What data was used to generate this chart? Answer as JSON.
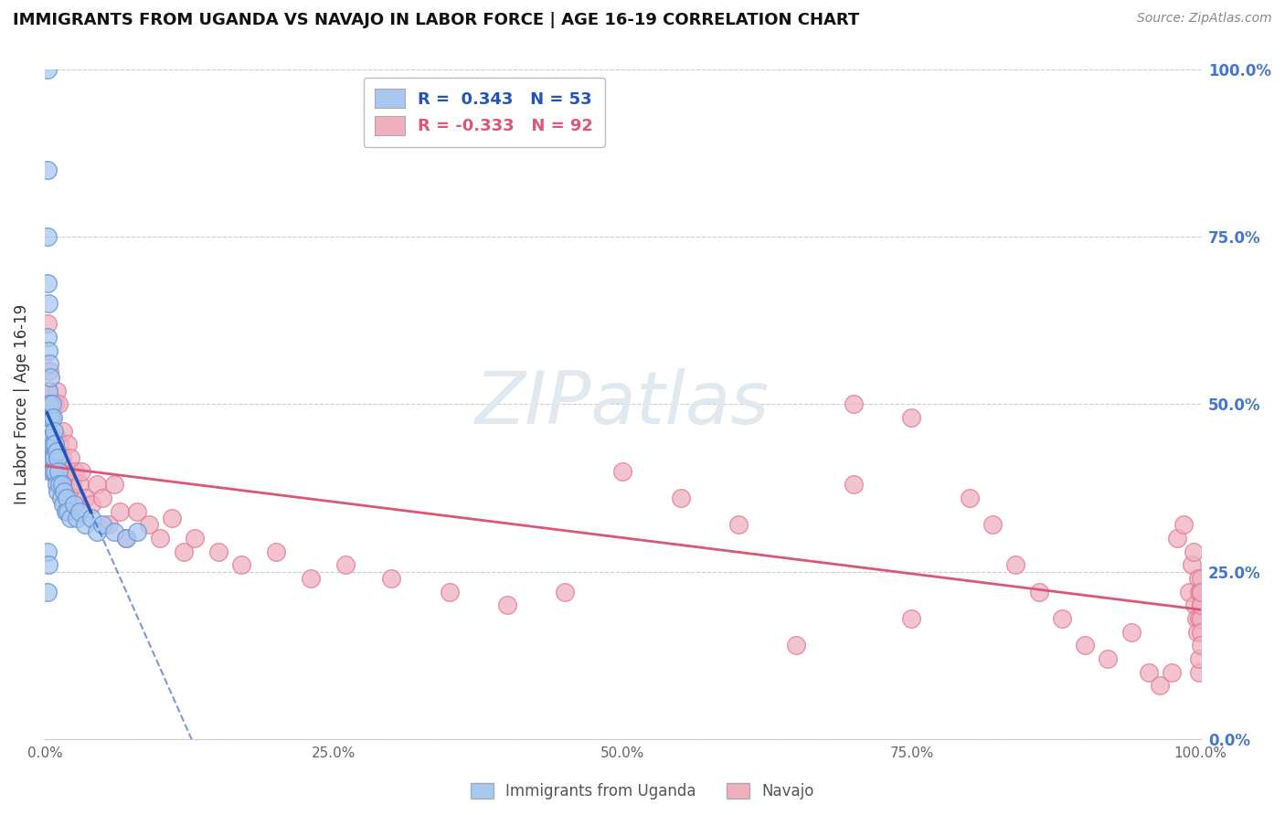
{
  "title": "IMMIGRANTS FROM UGANDA VS NAVAJO IN LABOR FORCE | AGE 16-19 CORRELATION CHART",
  "source": "Source: ZipAtlas.com",
  "ylabel": "In Labor Force | Age 16-19",
  "r_uganda": 0.343,
  "n_uganda": 53,
  "r_navajo": -0.333,
  "n_navajo": 92,
  "blue_scatter_face": "#a8c8f0",
  "blue_scatter_edge": "#6090d0",
  "pink_scatter_face": "#f0b0c0",
  "pink_scatter_edge": "#e07890",
  "blue_line_color": "#2255bb",
  "pink_line_color": "#dd5577",
  "ytick_color": "#4477cc",
  "xtick_color": "#666666",
  "grid_color": "#cccccc",
  "watermark_color": "#e0e8f0",
  "xlim": [
    0.0,
    1.0
  ],
  "ylim": [
    0.0,
    1.0
  ],
  "xticks": [
    0.0,
    0.25,
    0.5,
    0.75,
    1.0
  ],
  "yticks": [
    0.0,
    0.25,
    0.5,
    0.75,
    1.0
  ],
  "xticklabels": [
    "0.0%",
    "25.0%",
    "50.0%",
    "75.0%",
    "100.0%"
  ],
  "yticklabels": [
    "0.0%",
    "25.0%",
    "50.0%",
    "75.0%",
    "100.0%"
  ],
  "uganda_x": [
    0.002,
    0.002,
    0.002,
    0.002,
    0.002,
    0.003,
    0.003,
    0.003,
    0.003,
    0.004,
    0.004,
    0.004,
    0.005,
    0.005,
    0.005,
    0.005,
    0.006,
    0.006,
    0.006,
    0.007,
    0.007,
    0.007,
    0.008,
    0.008,
    0.009,
    0.009,
    0.01,
    0.01,
    0.011,
    0.011,
    0.012,
    0.013,
    0.014,
    0.015,
    0.016,
    0.017,
    0.018,
    0.019,
    0.02,
    0.022,
    0.025,
    0.028,
    0.03,
    0.035,
    0.04,
    0.045,
    0.05,
    0.06,
    0.07,
    0.08,
    0.002,
    0.003,
    0.002
  ],
  "uganda_y": [
    1.0,
    0.85,
    0.75,
    0.68,
    0.6,
    0.65,
    0.58,
    0.52,
    0.48,
    0.56,
    0.5,
    0.45,
    0.54,
    0.48,
    0.44,
    0.4,
    0.5,
    0.45,
    0.42,
    0.48,
    0.44,
    0.4,
    0.46,
    0.42,
    0.44,
    0.4,
    0.43,
    0.38,
    0.42,
    0.37,
    0.4,
    0.38,
    0.36,
    0.38,
    0.35,
    0.37,
    0.34,
    0.36,
    0.34,
    0.33,
    0.35,
    0.33,
    0.34,
    0.32,
    0.33,
    0.31,
    0.32,
    0.31,
    0.3,
    0.31,
    0.28,
    0.26,
    0.22
  ],
  "navajo_x": [
    0.002,
    0.003,
    0.004,
    0.004,
    0.005,
    0.005,
    0.006,
    0.006,
    0.007,
    0.007,
    0.008,
    0.009,
    0.01,
    0.01,
    0.011,
    0.012,
    0.013,
    0.014,
    0.015,
    0.016,
    0.017,
    0.018,
    0.02,
    0.022,
    0.024,
    0.026,
    0.028,
    0.03,
    0.032,
    0.035,
    0.04,
    0.045,
    0.05,
    0.055,
    0.06,
    0.065,
    0.07,
    0.08,
    0.09,
    0.1,
    0.11,
    0.12,
    0.13,
    0.15,
    0.17,
    0.2,
    0.23,
    0.26,
    0.3,
    0.35,
    0.4,
    0.45,
    0.5,
    0.55,
    0.6,
    0.65,
    0.7,
    0.75,
    0.8,
    0.82,
    0.84,
    0.86,
    0.88,
    0.9,
    0.92,
    0.94,
    0.955,
    0.965,
    0.975,
    0.98,
    0.985,
    0.99,
    0.992,
    0.994,
    0.995,
    0.996,
    0.997,
    0.998,
    0.999,
    0.999,
    0.999,
    0.999,
    1.0,
    1.0,
    1.0,
    1.0,
    1.0,
    1.0,
    1.0,
    1.0,
    0.7,
    0.75
  ],
  "navajo_y": [
    0.62,
    0.52,
    0.48,
    0.55,
    0.44,
    0.5,
    0.42,
    0.48,
    0.45,
    0.4,
    0.43,
    0.5,
    0.52,
    0.45,
    0.42,
    0.5,
    0.44,
    0.4,
    0.42,
    0.46,
    0.38,
    0.4,
    0.44,
    0.42,
    0.38,
    0.4,
    0.36,
    0.38,
    0.4,
    0.36,
    0.35,
    0.38,
    0.36,
    0.32,
    0.38,
    0.34,
    0.3,
    0.34,
    0.32,
    0.3,
    0.33,
    0.28,
    0.3,
    0.28,
    0.26,
    0.28,
    0.24,
    0.26,
    0.24,
    0.22,
    0.2,
    0.22,
    0.4,
    0.36,
    0.32,
    0.14,
    0.38,
    0.18,
    0.36,
    0.32,
    0.26,
    0.22,
    0.18,
    0.14,
    0.12,
    0.16,
    0.1,
    0.08,
    0.1,
    0.3,
    0.32,
    0.22,
    0.26,
    0.28,
    0.2,
    0.18,
    0.16,
    0.24,
    0.22,
    0.18,
    0.1,
    0.12,
    0.22,
    0.24,
    0.2,
    0.18,
    0.16,
    0.14,
    0.2,
    0.22,
    0.5,
    0.48
  ]
}
